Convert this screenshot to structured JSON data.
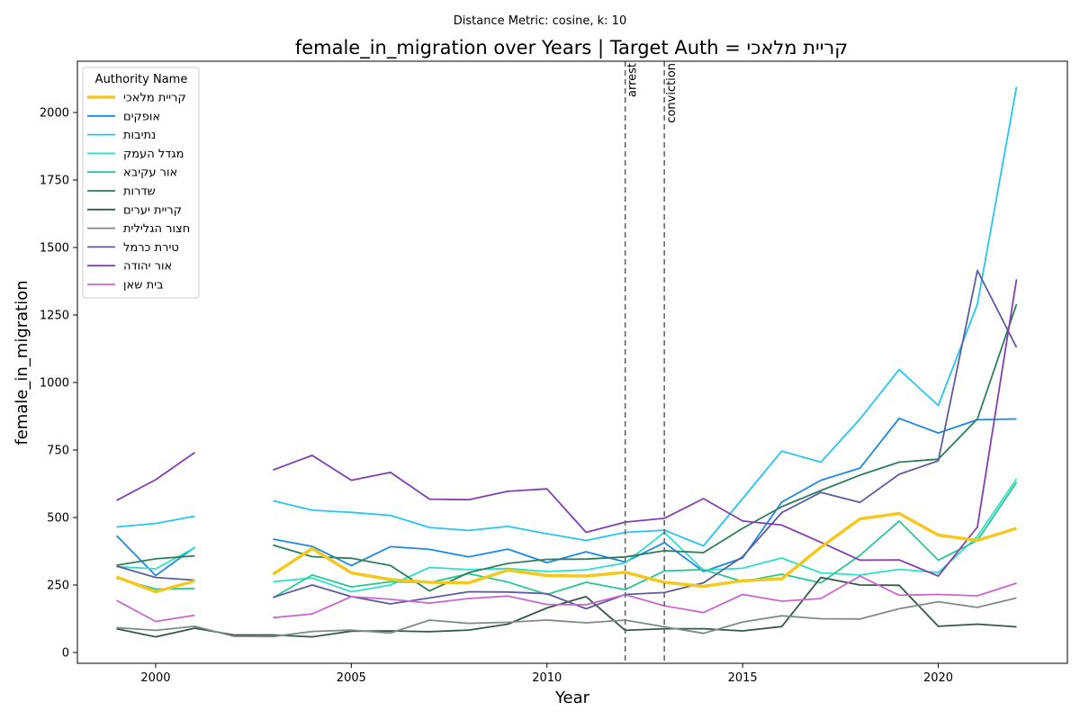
{
  "chart_data": {
    "type": "line",
    "subtitle": "Distance Metric: cosine, k: 10",
    "title": "female_in_migration over Years | Target Auth = קריית מלאכי",
    "xlabel": "Year",
    "ylabel": "female_in_migration",
    "xlim": [
      1998,
      2023.3
    ],
    "ylim": [
      -40,
      2190
    ],
    "xticks": [
      2000,
      2005,
      2010,
      2015,
      2020
    ],
    "yticks": [
      0,
      250,
      500,
      750,
      1000,
      1250,
      1500,
      1750,
      2000
    ],
    "grid": false,
    "legend": {
      "title": "Authority Name",
      "placement": "upper-left"
    },
    "vlines": [
      {
        "x": 2012,
        "label": "arrest"
      },
      {
        "x": 2013,
        "label": "conviction"
      }
    ],
    "x": [
      1999,
      2000,
      2001,
      2002,
      2003,
      2004,
      2005,
      2006,
      2007,
      2008,
      2009,
      2010,
      2011,
      2012,
      2013,
      2014,
      2015,
      2016,
      2017,
      2018,
      2019,
      2020,
      2021,
      2022
    ],
    "series": [
      {
        "name": "קריית מלאכי",
        "color": "#f4c81e",
        "target": true,
        "values": [
          280,
          225,
          265,
          null,
          290,
          385,
          295,
          270,
          260,
          258,
          305,
          285,
          283,
          297,
          260,
          245,
          266,
          273,
          390,
          495,
          515,
          435,
          415,
          460
        ]
      },
      {
        "name": "אופקים",
        "color": "#1e88e5",
        "values": [
          433,
          285,
          390,
          null,
          420,
          393,
          322,
          392,
          382,
          354,
          383,
          333,
          373,
          335,
          407,
          300,
          350,
          557,
          638,
          683,
          867,
          813,
          862,
          865
        ]
      },
      {
        "name": "נתיבות",
        "color": "#26c6f0",
        "values": [
          465,
          478,
          505,
          null,
          562,
          527,
          519,
          508,
          463,
          452,
          467,
          440,
          415,
          445,
          453,
          395,
          570,
          746,
          705,
          865,
          1048,
          915,
          1290,
          2095
        ]
      },
      {
        "name": "מגדל העמק",
        "color": "#2ee0c6",
        "values": [
          318,
          310,
          388,
          null,
          262,
          276,
          225,
          250,
          315,
          307,
          311,
          300,
          306,
          332,
          445,
          305,
          312,
          350,
          295,
          287,
          308,
          296,
          430,
          643
        ]
      },
      {
        "name": "אור עקיבא",
        "color": "#27c98f",
        "values": [
          275,
          235,
          237,
          null,
          203,
          287,
          243,
          262,
          259,
          292,
          261,
          215,
          260,
          233,
          302,
          307,
          263,
          290,
          258,
          360,
          487,
          342,
          415,
          630
        ]
      },
      {
        "name": "שדרות",
        "color": "#2e7d5b",
        "values": [
          323,
          347,
          358,
          null,
          398,
          355,
          349,
          322,
          228,
          296,
          330,
          345,
          346,
          354,
          377,
          370,
          460,
          540,
          600,
          657,
          705,
          716,
          865,
          1290
        ]
      },
      {
        "name": "קריית יערים",
        "color": "#37574a",
        "values": [
          88,
          58,
          90,
          65,
          65,
          58,
          79,
          80,
          77,
          83,
          105,
          165,
          207,
          82,
          88,
          88,
          80,
          96,
          278,
          250,
          249,
          97,
          105,
          95
        ]
      },
      {
        "name": "חצור הגלילית",
        "color": "#7f8c84",
        "values": [
          92,
          82,
          97,
          60,
          59,
          78,
          83,
          72,
          120,
          108,
          112,
          120,
          110,
          120,
          95,
          71,
          113,
          136,
          125,
          124,
          162,
          188,
          167,
          202
        ]
      },
      {
        "name": "טירת כרמל",
        "color": "#5c5c9e",
        "values": [
          320,
          278,
          268,
          null,
          204,
          250,
          207,
          180,
          202,
          225,
          224,
          218,
          162,
          215,
          222,
          258,
          355,
          518,
          593,
          556,
          660,
          710,
          1415,
          1130
        ]
      },
      {
        "name": "אור יהודה",
        "color": "#8040b0",
        "values": [
          563,
          640,
          741,
          null,
          676,
          730,
          638,
          667,
          568,
          566,
          597,
          606,
          445,
          483,
          497,
          570,
          487,
          472,
          408,
          342,
          343,
          283,
          465,
          1382
        ]
      },
      {
        "name": "בית שאן",
        "color": "#cc66cc",
        "values": [
          193,
          115,
          138,
          null,
          129,
          143,
          207,
          197,
          183,
          200,
          209,
          178,
          177,
          214,
          173,
          148,
          215,
          190,
          200,
          283,
          212,
          215,
          210,
          257
        ]
      }
    ]
  }
}
